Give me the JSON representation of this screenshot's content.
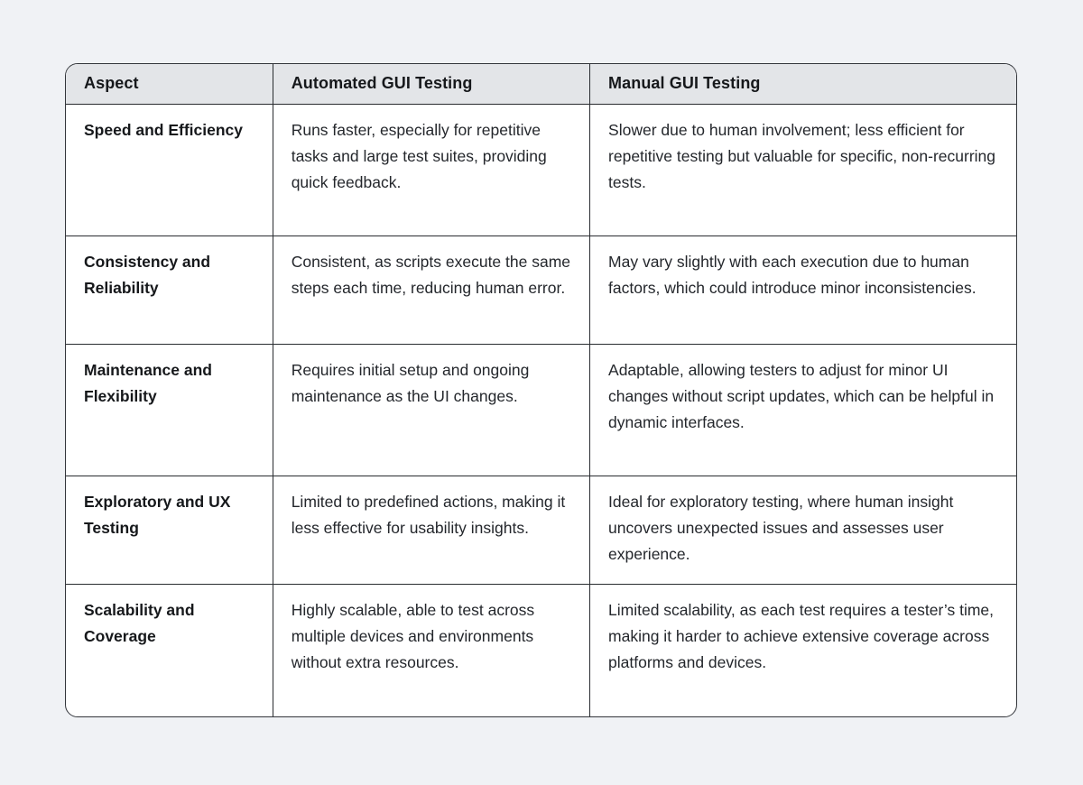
{
  "colors": {
    "page_bg": "#f0f2f5",
    "header_bg": "#e3e5e8",
    "cell_bg": "#ffffff",
    "border": "#292c30",
    "text": "#1f2228"
  },
  "table": {
    "columns": [
      "Aspect",
      "Automated GUI Testing",
      "Manual GUI Testing"
    ],
    "rows": [
      {
        "aspect": "Speed and Efficiency",
        "automated": "Runs faster, especially for repetitive tasks and large test suites, providing quick feedback.",
        "manual": "Slower due to human involvement; less efficient for repetitive testing but valuable for specific, non-recurring tests."
      },
      {
        "aspect": "Consistency and Reliability",
        "automated": "Consistent, as scripts execute the same steps each time, reducing human error.",
        "manual": "May vary slightly with each execution due to human factors, which could introduce minor inconsistencies."
      },
      {
        "aspect": "Maintenance and Flexibility",
        "automated": "Requires initial setup and ongoing maintenance as the UI changes.",
        "manual": "Adaptable, allowing testers to adjust for minor UI changes without script updates, which can be helpful in dynamic interfaces."
      },
      {
        "aspect": "Exploratory and UX Testing",
        "automated": "Limited to predefined actions, making it less effective for usability insights.",
        "manual": "Ideal for exploratory testing, where human insight uncovers unexpected issues and assesses user experience."
      },
      {
        "aspect": "Scalability and Coverage",
        "automated": "Highly scalable, able to test across multiple devices and environments without extra resources.",
        "manual": "Limited scalability, as each test requires a tester’s time, making it harder to achieve extensive coverage across platforms and devices."
      }
    ]
  }
}
